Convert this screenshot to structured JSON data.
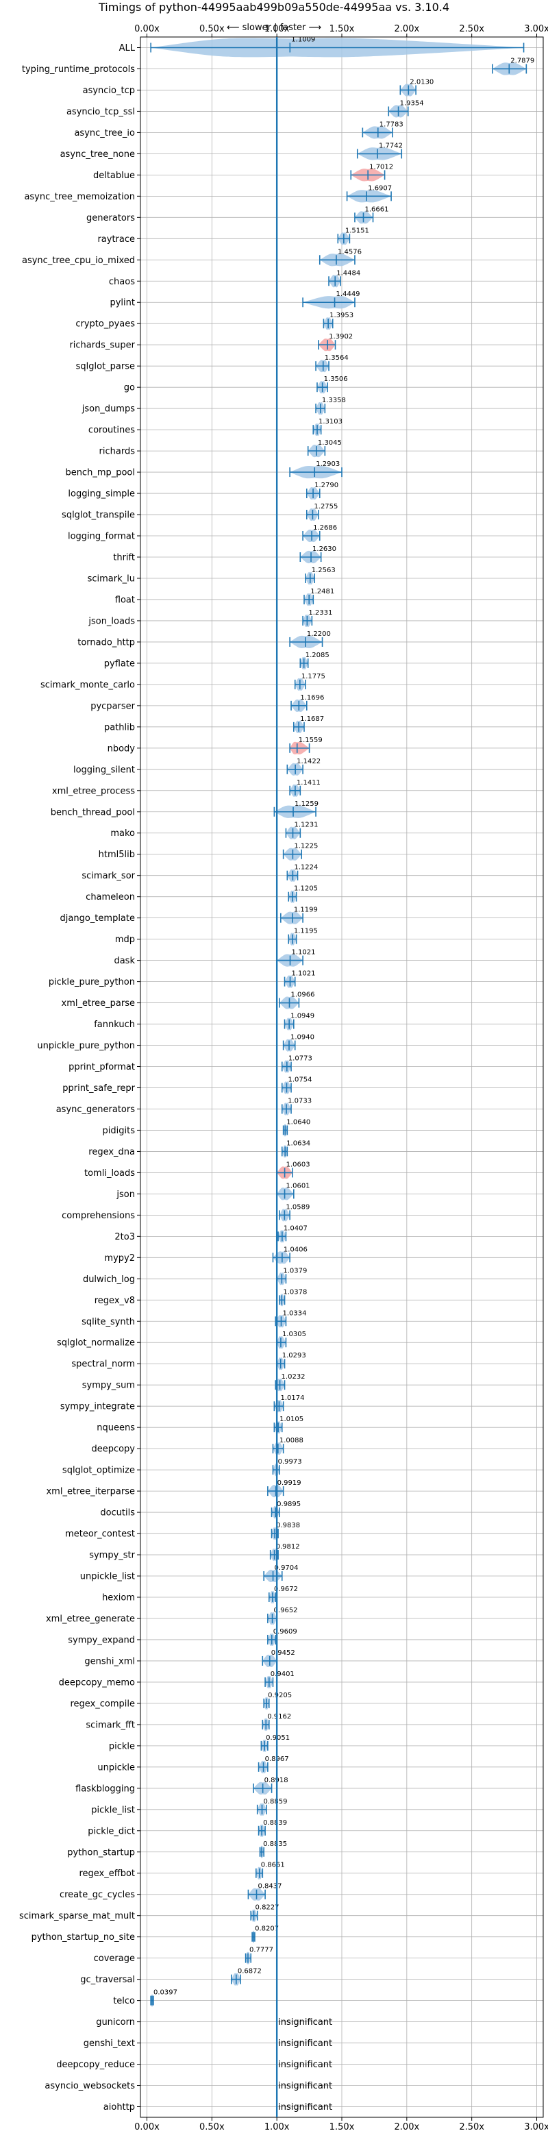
{
  "chart_data": {
    "type": "violin",
    "title": "Timings of python-44995aab499b09a550de-44995aa vs. 3.10.4",
    "annotation": "⟵ slower | faster ⟶",
    "xlim": [
      -0.05,
      3.05
    ],
    "xticks": [
      0.0,
      0.5,
      1.0,
      1.5,
      2.0,
      2.5,
      3.0
    ],
    "xtick_labels": [
      "0.00x",
      "0.50x",
      "1.00x",
      "1.50x",
      "2.00x",
      "2.50x",
      "3.00x"
    ],
    "reference_line": 1.0,
    "grid": true,
    "colors": {
      "significant": "#1f77b4",
      "violin_fill": "#a6c8e6",
      "violin_fill_highlight": "#f4a5a5",
      "reference": "#1f77b4"
    },
    "insignificant_label": "insignificant",
    "benchmarks": [
      {
        "name": "ALL",
        "value": 1.1009,
        "value_label": "1.1009",
        "min": 0.03,
        "max": 2.9
      },
      {
        "name": "typing_runtime_protocols",
        "value": 2.7879,
        "value_label": "2.7879",
        "min": 2.66,
        "max": 2.92
      },
      {
        "name": "asyncio_tcp",
        "value": 2.013,
        "value_label": "2.0130",
        "min": 1.95,
        "max": 2.07
      },
      {
        "name": "asyncio_tcp_ssl",
        "value": 1.9354,
        "value_label": "1.9354",
        "min": 1.86,
        "max": 2.01
      },
      {
        "name": "async_tree_io",
        "value": 1.7783,
        "value_label": "1.7783",
        "min": 1.66,
        "max": 1.89
      },
      {
        "name": "async_tree_none",
        "value": 1.7742,
        "value_label": "1.7742",
        "min": 1.62,
        "max": 1.96
      },
      {
        "name": "deltablue",
        "value": 1.7012,
        "value_label": "1.7012",
        "min": 1.57,
        "max": 1.83,
        "highlight": true
      },
      {
        "name": "async_tree_memoization",
        "value": 1.6907,
        "value_label": "1.6907",
        "min": 1.54,
        "max": 1.88
      },
      {
        "name": "generators",
        "value": 1.6661,
        "value_label": "1.6661",
        "min": 1.6,
        "max": 1.74
      },
      {
        "name": "raytrace",
        "value": 1.5151,
        "value_label": "1.5151",
        "min": 1.47,
        "max": 1.56
      },
      {
        "name": "async_tree_cpu_io_mixed",
        "value": 1.4576,
        "value_label": "1.4576",
        "min": 1.33,
        "max": 1.6
      },
      {
        "name": "chaos",
        "value": 1.4484,
        "value_label": "1.4484",
        "min": 1.4,
        "max": 1.49
      },
      {
        "name": "pylint",
        "value": 1.4449,
        "value_label": "1.4449",
        "min": 1.2,
        "max": 1.6
      },
      {
        "name": "crypto_pyaes",
        "value": 1.3953,
        "value_label": "1.3953",
        "min": 1.36,
        "max": 1.43
      },
      {
        "name": "richards_super",
        "value": 1.3902,
        "value_label": "1.3902",
        "min": 1.32,
        "max": 1.45,
        "highlight": true
      },
      {
        "name": "sqlglot_parse",
        "value": 1.3564,
        "value_label": "1.3564",
        "min": 1.3,
        "max": 1.4
      },
      {
        "name": "go",
        "value": 1.3506,
        "value_label": "1.3506",
        "min": 1.31,
        "max": 1.39
      },
      {
        "name": "json_dumps",
        "value": 1.3358,
        "value_label": "1.3358",
        "min": 1.3,
        "max": 1.37
      },
      {
        "name": "coroutines",
        "value": 1.3103,
        "value_label": "1.3103",
        "min": 1.28,
        "max": 1.34
      },
      {
        "name": "richards",
        "value": 1.3045,
        "value_label": "1.3045",
        "min": 1.24,
        "max": 1.37
      },
      {
        "name": "bench_mp_pool",
        "value": 1.2903,
        "value_label": "1.2903",
        "min": 1.1,
        "max": 1.5
      },
      {
        "name": "logging_simple",
        "value": 1.279,
        "value_label": "1.2790",
        "min": 1.23,
        "max": 1.33
      },
      {
        "name": "sqlglot_transpile",
        "value": 1.2755,
        "value_label": "1.2755",
        "min": 1.23,
        "max": 1.32
      },
      {
        "name": "logging_format",
        "value": 1.2686,
        "value_label": "1.2686",
        "min": 1.2,
        "max": 1.33
      },
      {
        "name": "thrift",
        "value": 1.263,
        "value_label": "1.2630",
        "min": 1.18,
        "max": 1.34
      },
      {
        "name": "scimark_lu",
        "value": 1.2563,
        "value_label": "1.2563",
        "min": 1.22,
        "max": 1.29
      },
      {
        "name": "float",
        "value": 1.2481,
        "value_label": "1.2481",
        "min": 1.21,
        "max": 1.28
      },
      {
        "name": "json_loads",
        "value": 1.2331,
        "value_label": "1.2331",
        "min": 1.2,
        "max": 1.27
      },
      {
        "name": "tornado_http",
        "value": 1.22,
        "value_label": "1.2200",
        "min": 1.1,
        "max": 1.35
      },
      {
        "name": "pyflate",
        "value": 1.2085,
        "value_label": "1.2085",
        "min": 1.18,
        "max": 1.24
      },
      {
        "name": "scimark_monte_carlo",
        "value": 1.1775,
        "value_label": "1.1775",
        "min": 1.14,
        "max": 1.22
      },
      {
        "name": "pycparser",
        "value": 1.1696,
        "value_label": "1.1696",
        "min": 1.11,
        "max": 1.23
      },
      {
        "name": "pathlib",
        "value": 1.1687,
        "value_label": "1.1687",
        "min": 1.13,
        "max": 1.21
      },
      {
        "name": "nbody",
        "value": 1.1559,
        "value_label": "1.1559",
        "min": 1.1,
        "max": 1.25,
        "highlight": true
      },
      {
        "name": "logging_silent",
        "value": 1.1422,
        "value_label": "1.1422",
        "min": 1.08,
        "max": 1.2
      },
      {
        "name": "xml_etree_process",
        "value": 1.1411,
        "value_label": "1.1411",
        "min": 1.1,
        "max": 1.18
      },
      {
        "name": "bench_thread_pool",
        "value": 1.1259,
        "value_label": "1.1259",
        "min": 0.98,
        "max": 1.3
      },
      {
        "name": "mako",
        "value": 1.1231,
        "value_label": "1.1231",
        "min": 1.07,
        "max": 1.18
      },
      {
        "name": "html5lib",
        "value": 1.1225,
        "value_label": "1.1225",
        "min": 1.05,
        "max": 1.19
      },
      {
        "name": "scimark_sor",
        "value": 1.1224,
        "value_label": "1.1224",
        "min": 1.08,
        "max": 1.16
      },
      {
        "name": "chameleon",
        "value": 1.1205,
        "value_label": "1.1205",
        "min": 1.09,
        "max": 1.15
      },
      {
        "name": "django_template",
        "value": 1.1199,
        "value_label": "1.1199",
        "min": 1.03,
        "max": 1.2
      },
      {
        "name": "mdp",
        "value": 1.1195,
        "value_label": "1.1195",
        "min": 1.09,
        "max": 1.15
      },
      {
        "name": "dask",
        "value": 1.1021,
        "value_label": "1.1021",
        "min": 1.0,
        "max": 1.2
      },
      {
        "name": "pickle_pure_python",
        "value": 1.1021,
        "value_label": "1.1021",
        "min": 1.06,
        "max": 1.14
      },
      {
        "name": "xml_etree_parse",
        "value": 1.0966,
        "value_label": "1.0966",
        "min": 1.02,
        "max": 1.17
      },
      {
        "name": "fannkuch",
        "value": 1.0949,
        "value_label": "1.0949",
        "min": 1.06,
        "max": 1.13
      },
      {
        "name": "unpickle_pure_python",
        "value": 1.094,
        "value_label": "1.0940",
        "min": 1.05,
        "max": 1.14
      },
      {
        "name": "pprint_pformat",
        "value": 1.0773,
        "value_label": "1.0773",
        "min": 1.04,
        "max": 1.11
      },
      {
        "name": "pprint_safe_repr",
        "value": 1.0754,
        "value_label": "1.0754",
        "min": 1.04,
        "max": 1.11
      },
      {
        "name": "async_generators",
        "value": 1.0733,
        "value_label": "1.0733",
        "min": 1.04,
        "max": 1.11
      },
      {
        "name": "pidigits",
        "value": 1.064,
        "value_label": "1.0640",
        "min": 1.05,
        "max": 1.08
      },
      {
        "name": "regex_dna",
        "value": 1.0634,
        "value_label": "1.0634",
        "min": 1.04,
        "max": 1.08
      },
      {
        "name": "tomli_loads",
        "value": 1.0603,
        "value_label": "1.0603",
        "min": 1.0,
        "max": 1.12,
        "highlight": true
      },
      {
        "name": "json",
        "value": 1.0601,
        "value_label": "1.0601",
        "min": 1.0,
        "max": 1.13
      },
      {
        "name": "comprehensions",
        "value": 1.0589,
        "value_label": "1.0589",
        "min": 1.02,
        "max": 1.1
      },
      {
        "name": "2to3",
        "value": 1.0407,
        "value_label": "1.0407",
        "min": 1.01,
        "max": 1.07
      },
      {
        "name": "mypy2",
        "value": 1.0406,
        "value_label": "1.0406",
        "min": 0.97,
        "max": 1.1
      },
      {
        "name": "dulwich_log",
        "value": 1.0379,
        "value_label": "1.0379",
        "min": 1.0,
        "max": 1.07
      },
      {
        "name": "regex_v8",
        "value": 1.0378,
        "value_label": "1.0378",
        "min": 1.02,
        "max": 1.06
      },
      {
        "name": "sqlite_synth",
        "value": 1.0334,
        "value_label": "1.0334",
        "min": 0.99,
        "max": 1.07
      },
      {
        "name": "sqlglot_normalize",
        "value": 1.0305,
        "value_label": "1.0305",
        "min": 1.0,
        "max": 1.07
      },
      {
        "name": "spectral_norm",
        "value": 1.0293,
        "value_label": "1.0293",
        "min": 1.0,
        "max": 1.06
      },
      {
        "name": "sympy_sum",
        "value": 1.0232,
        "value_label": "1.0232",
        "min": 0.99,
        "max": 1.06
      },
      {
        "name": "sympy_integrate",
        "value": 1.0174,
        "value_label": "1.0174",
        "min": 0.98,
        "max": 1.05
      },
      {
        "name": "nqueens",
        "value": 1.0105,
        "value_label": "1.0105",
        "min": 0.98,
        "max": 1.04
      },
      {
        "name": "deepcopy",
        "value": 1.0088,
        "value_label": "1.0088",
        "min": 0.97,
        "max": 1.05
      },
      {
        "name": "sqlglot_optimize",
        "value": 0.9973,
        "value_label": "0.9973",
        "min": 0.97,
        "max": 1.02
      },
      {
        "name": "xml_etree_iterparse",
        "value": 0.9919,
        "value_label": "0.9919",
        "min": 0.93,
        "max": 1.05
      },
      {
        "name": "docutils",
        "value": 0.9895,
        "value_label": "0.9895",
        "min": 0.96,
        "max": 1.02
      },
      {
        "name": "meteor_contest",
        "value": 0.9838,
        "value_label": "0.9838",
        "min": 0.96,
        "max": 1.01
      },
      {
        "name": "sympy_str",
        "value": 0.9812,
        "value_label": "0.9812",
        "min": 0.95,
        "max": 1.01
      },
      {
        "name": "unpickle_list",
        "value": 0.9704,
        "value_label": "0.9704",
        "min": 0.9,
        "max": 1.04
      },
      {
        "name": "hexiom",
        "value": 0.9672,
        "value_label": "0.9672",
        "min": 0.94,
        "max": 0.99
      },
      {
        "name": "xml_etree_generate",
        "value": 0.9652,
        "value_label": "0.9652",
        "min": 0.93,
        "max": 1.0
      },
      {
        "name": "sympy_expand",
        "value": 0.9609,
        "value_label": "0.9609",
        "min": 0.93,
        "max": 0.99
      },
      {
        "name": "genshi_xml",
        "value": 0.9452,
        "value_label": "0.9452",
        "min": 0.89,
        "max": 1.0
      },
      {
        "name": "deepcopy_memo",
        "value": 0.9401,
        "value_label": "0.9401",
        "min": 0.91,
        "max": 0.97
      },
      {
        "name": "regex_compile",
        "value": 0.9205,
        "value_label": "0.9205",
        "min": 0.9,
        "max": 0.94
      },
      {
        "name": "scimark_fft",
        "value": 0.9162,
        "value_label": "0.9162",
        "min": 0.89,
        "max": 0.94
      },
      {
        "name": "pickle",
        "value": 0.9051,
        "value_label": "0.9051",
        "min": 0.88,
        "max": 0.93
      },
      {
        "name": "unpickle",
        "value": 0.8967,
        "value_label": "0.8967",
        "min": 0.86,
        "max": 0.93
      },
      {
        "name": "flaskblogging",
        "value": 0.8918,
        "value_label": "0.8918",
        "min": 0.82,
        "max": 0.96
      },
      {
        "name": "pickle_list",
        "value": 0.8859,
        "value_label": "0.8859",
        "min": 0.85,
        "max": 0.92
      },
      {
        "name": "pickle_dict",
        "value": 0.8839,
        "value_label": "0.8839",
        "min": 0.86,
        "max": 0.91
      },
      {
        "name": "python_startup",
        "value": 0.8835,
        "value_label": "0.8835",
        "min": 0.87,
        "max": 0.9
      },
      {
        "name": "regex_effbot",
        "value": 0.8661,
        "value_label": "0.8661",
        "min": 0.84,
        "max": 0.89
      },
      {
        "name": "create_gc_cycles",
        "value": 0.8437,
        "value_label": "0.8437",
        "min": 0.78,
        "max": 0.91
      },
      {
        "name": "scimark_sparse_mat_mult",
        "value": 0.8227,
        "value_label": "0.8227",
        "min": 0.8,
        "max": 0.85
      },
      {
        "name": "python_startup_no_site",
        "value": 0.8207,
        "value_label": "0.8207",
        "min": 0.81,
        "max": 0.83
      },
      {
        "name": "coverage",
        "value": 0.7777,
        "value_label": "0.7777",
        "min": 0.76,
        "max": 0.8
      },
      {
        "name": "gc_traversal",
        "value": 0.6872,
        "value_label": "0.6872",
        "min": 0.65,
        "max": 0.72
      },
      {
        "name": "telco",
        "value": 0.0397,
        "value_label": "0.0397",
        "min": 0.03,
        "max": 0.05
      },
      {
        "name": "gunicorn",
        "insignificant": true
      },
      {
        "name": "genshi_text",
        "insignificant": true
      },
      {
        "name": "deepcopy_reduce",
        "insignificant": true
      },
      {
        "name": "asyncio_websockets",
        "insignificant": true
      },
      {
        "name": "aiohttp",
        "insignificant": true
      }
    ]
  }
}
